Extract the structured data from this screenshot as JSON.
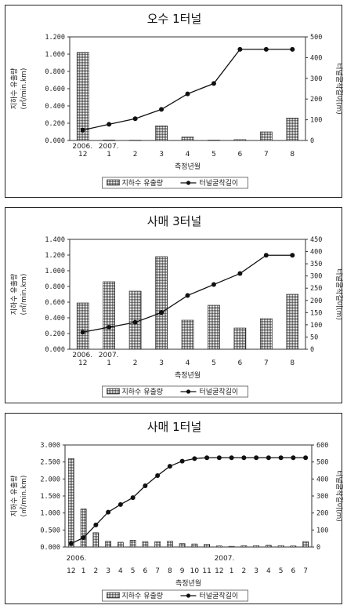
{
  "chart_data": [
    {
      "type": "bar+line",
      "title": "오수 1터널",
      "xlabel": "측정년월",
      "ylabel_left": "지하수 유출량\n(㎥/min.km)",
      "ylabel_right": "터널굴착길이(m)",
      "categories": [
        "12",
        "1",
        "2",
        "3",
        "4",
        "5",
        "6",
        "7",
        "8"
      ],
      "year_labels": [
        {
          "index": 0,
          "text": "2006."
        },
        {
          "index": 1,
          "text": "2007."
        }
      ],
      "ylim_left": [
        0,
        1.2
      ],
      "yticks_left": [
        "0.000",
        "0.200",
        "0.400",
        "0.600",
        "0.800",
        "1.000",
        "1.200"
      ],
      "ylim_right": [
        0,
        500
      ],
      "yticks_right": [
        "0",
        "100",
        "200",
        "300",
        "400",
        "500"
      ],
      "series": [
        {
          "name": "지하수 유출량",
          "kind": "bar",
          "axis": "left",
          "values": [
            1.02,
            0.005,
            0.003,
            0.17,
            0.04,
            0.004,
            0.01,
            0.1,
            0.26
          ]
        },
        {
          "name": "터널굴착길이",
          "kind": "line",
          "axis": "right",
          "values": [
            50,
            78,
            105,
            150,
            225,
            275,
            440,
            440,
            440
          ]
        }
      ]
    },
    {
      "type": "bar+line",
      "title": "사매 3터널",
      "xlabel": "측정년월",
      "ylabel_left": "지하수 유출량\n(㎥/min.km)",
      "ylabel_right": "터널굴착길이(m)",
      "categories": [
        "12",
        "1",
        "2",
        "3",
        "4",
        "5",
        "6",
        "7",
        "8"
      ],
      "year_labels": [
        {
          "index": 0,
          "text": "2006."
        },
        {
          "index": 1,
          "text": "2007."
        }
      ],
      "ylim_left": [
        0,
        1.4
      ],
      "yticks_left": [
        "0.000",
        "0.200",
        "0.400",
        "0.600",
        "0.800",
        "1.000",
        "1.200",
        "1.400"
      ],
      "ylim_right": [
        0,
        450
      ],
      "yticks_right": [
        "0",
        "50",
        "100",
        "150",
        "200",
        "250",
        "300",
        "350",
        "400",
        "450"
      ],
      "series": [
        {
          "name": "지하수 유출량",
          "kind": "bar",
          "axis": "left",
          "values": [
            0.59,
            0.86,
            0.74,
            1.18,
            0.37,
            0.56,
            0.27,
            0.39,
            0.7
          ]
        },
        {
          "name": "터널굴착길이",
          "kind": "line",
          "axis": "right",
          "values": [
            70,
            90,
            110,
            150,
            220,
            265,
            310,
            385,
            385
          ]
        }
      ]
    },
    {
      "type": "bar+line",
      "title": "사매 1터널",
      "xlabel": "측정년월",
      "ylabel_left": "지하수 유출량\n(㎥/min.km)",
      "ylabel_right": "터널굴착길이(m)",
      "categories": [
        "12",
        "1",
        "2",
        "3",
        "4",
        "5",
        "6",
        "7",
        "8",
        "9",
        "10",
        "11",
        "12",
        "1",
        "2",
        "3",
        "4",
        "5",
        "6",
        "7"
      ],
      "year_labels": [
        {
          "index": 0,
          "text": "2006."
        },
        {
          "index": 12,
          "text": "2007."
        }
      ],
      "ylim_left": [
        0,
        3.0
      ],
      "yticks_left": [
        "0.000",
        "0.500",
        "1.000",
        "1.500",
        "2.000",
        "2.500",
        "3.000"
      ],
      "ylim_right": [
        0,
        600
      ],
      "yticks_right": [
        "0",
        "100",
        "200",
        "300",
        "400",
        "500",
        "600"
      ],
      "series": [
        {
          "name": "지하수 유출량",
          "kind": "bar",
          "axis": "left",
          "values": [
            2.6,
            1.12,
            0.42,
            0.17,
            0.14,
            0.2,
            0.16,
            0.16,
            0.17,
            0.1,
            0.09,
            0.08,
            0.03,
            0.02,
            0.04,
            0.04,
            0.05,
            0.04,
            0.03,
            0.16
          ]
        },
        {
          "name": "터널굴착길이",
          "kind": "line",
          "axis": "right",
          "values": [
            20,
            55,
            130,
            205,
            250,
            290,
            360,
            420,
            475,
            505,
            520,
            525,
            525,
            525,
            525,
            525,
            525,
            525,
            525,
            525
          ]
        }
      ]
    }
  ],
  "legend": {
    "bar_label": "지하수 유출량",
    "line_label": "터널굴착길이"
  }
}
